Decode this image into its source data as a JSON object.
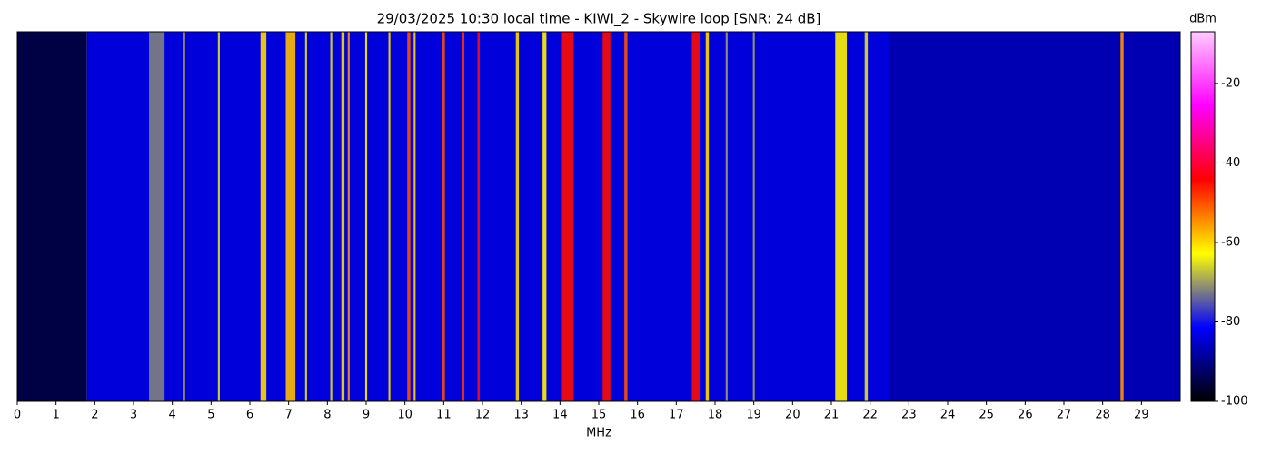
{
  "chart_data": {
    "type": "waterfall",
    "title": "29/03/2025 10:30 local time - KIWI_2 - Skywire loop [SNR: 24 dB]",
    "xlabel": "MHz",
    "colorbar_label": "dBm",
    "xlim": [
      0,
      30
    ],
    "xticks": [
      0,
      1,
      2,
      3,
      4,
      5,
      6,
      7,
      8,
      9,
      10,
      11,
      12,
      13,
      14,
      15,
      16,
      17,
      18,
      19,
      20,
      21,
      22,
      23,
      24,
      25,
      26,
      27,
      28,
      29
    ],
    "zlim": [
      -100,
      -7
    ],
    "zticks": [
      -20,
      -40,
      -60,
      -80,
      -100
    ],
    "colormap": [
      "#000000",
      "#0000ff",
      "#ffff00",
      "#ff0000",
      "#ff00ff",
      "#ffccff"
    ],
    "noise_floor": [
      {
        "from": 0,
        "to": 1.8,
        "level": -95
      },
      {
        "from": 1.8,
        "to": 22.5,
        "level": -84
      },
      {
        "from": 22.5,
        "to": 30,
        "level": -87
      }
    ],
    "signals": [
      {
        "freq": 3.6,
        "width": 0.4,
        "level": -72
      },
      {
        "freq": 4.3,
        "width": 0.05,
        "level": -62
      },
      {
        "freq": 5.2,
        "width": 0.05,
        "level": -65
      },
      {
        "freq": 6.35,
        "width": 0.15,
        "level": -60
      },
      {
        "freq": 7.05,
        "width": 0.25,
        "level": -58
      },
      {
        "freq": 7.45,
        "width": 0.05,
        "level": -65
      },
      {
        "freq": 8.1,
        "width": 0.05,
        "level": -65
      },
      {
        "freq": 8.4,
        "width": 0.08,
        "level": -60
      },
      {
        "freq": 8.55,
        "width": 0.05,
        "level": -55
      },
      {
        "freq": 9.0,
        "width": 0.05,
        "level": -62
      },
      {
        "freq": 9.6,
        "width": 0.05,
        "level": -60
      },
      {
        "freq": 10.1,
        "width": 0.08,
        "level": -50
      },
      {
        "freq": 10.25,
        "width": 0.05,
        "level": -60
      },
      {
        "freq": 11.0,
        "width": 0.06,
        "level": -50
      },
      {
        "freq": 11.5,
        "width": 0.06,
        "level": -48
      },
      {
        "freq": 11.9,
        "width": 0.06,
        "level": -45
      },
      {
        "freq": 12.9,
        "width": 0.08,
        "level": -60
      },
      {
        "freq": 13.6,
        "width": 0.1,
        "level": -62
      },
      {
        "freq": 14.2,
        "width": 0.3,
        "level": -45
      },
      {
        "freq": 15.2,
        "width": 0.2,
        "level": -45
      },
      {
        "freq": 15.7,
        "width": 0.08,
        "level": -50
      },
      {
        "freq": 17.5,
        "width": 0.2,
        "level": -45
      },
      {
        "freq": 17.8,
        "width": 0.08,
        "level": -60
      },
      {
        "freq": 18.3,
        "width": 0.05,
        "level": -70
      },
      {
        "freq": 19.0,
        "width": 0.05,
        "level": -70
      },
      {
        "freq": 21.25,
        "width": 0.3,
        "level": -62
      },
      {
        "freq": 21.9,
        "width": 0.08,
        "level": -65
      },
      {
        "freq": 28.5,
        "width": 0.08,
        "level": -55
      }
    ]
  }
}
